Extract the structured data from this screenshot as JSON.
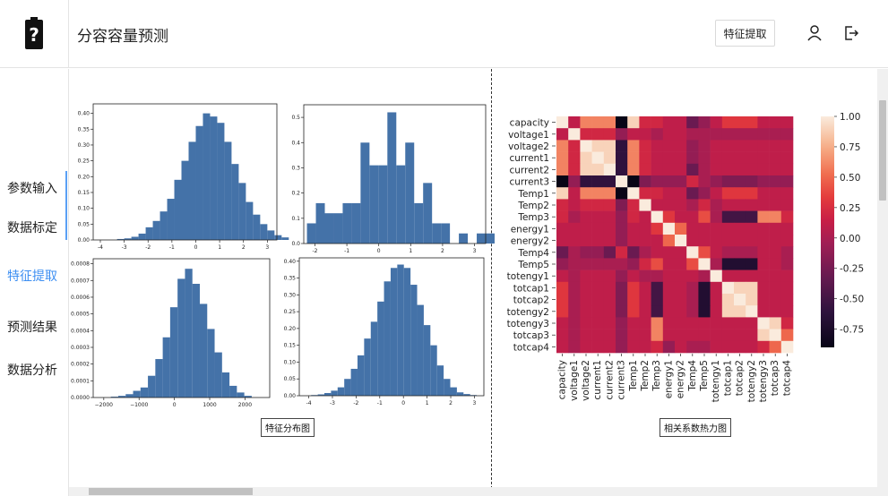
{
  "header": {
    "title": "分容容量预测",
    "extract_button": "特征提取",
    "user_icon": "user-icon",
    "logout_icon": "logout-icon",
    "logo_icon": "battery-question-icon"
  },
  "sidebar": {
    "items": [
      {
        "label": "参数输入"
      },
      {
        "label": "数据标定"
      },
      {
        "label": "特征提取"
      },
      {
        "label": "预测结果"
      },
      {
        "label": "数据分析"
      }
    ],
    "active": "特征提取",
    "active_color": "#3d8ff2"
  },
  "captions": {
    "distribution": "特征分布图",
    "heatmap": "相关系数热力图"
  },
  "chart_data": [
    {
      "type": "bar",
      "xticks": [
        "-4",
        "-3",
        "-2",
        "-1",
        "0",
        "1",
        "2",
        "3"
      ],
      "yticks": [
        "0.00",
        "0.05",
        "0.10",
        "0.15",
        "0.20",
        "0.25",
        "0.30",
        "0.35",
        "0.40"
      ],
      "xlim": [
        -4.3,
        3.4
      ],
      "ylim": [
        0,
        0.43
      ],
      "bin_start": -3.3,
      "bin_width": 0.3,
      "values": [
        0.003,
        0.005,
        0.01,
        0.02,
        0.04,
        0.06,
        0.09,
        0.13,
        0.19,
        0.25,
        0.31,
        0.36,
        0.4,
        0.39,
        0.37,
        0.31,
        0.24,
        0.18,
        0.12,
        0.08,
        0.05,
        0.03,
        0.015,
        0.008
      ],
      "color": "#4472a8"
    },
    {
      "type": "bar",
      "xticks": [
        "-2",
        "-1",
        "0",
        "1",
        "2",
        "3"
      ],
      "yticks": [
        "0.0",
        "0.1",
        "0.2",
        "0.3",
        "0.4",
        "0.5"
      ],
      "xlim": [
        -2.35,
        3.35
      ],
      "ylim": [
        0,
        0.55
      ],
      "bin_start": -2.25,
      "bin_width": 0.28,
      "values": [
        0.08,
        0.16,
        0.12,
        0.12,
        0.16,
        0.16,
        0.4,
        0.31,
        0.31,
        0.52,
        0.31,
        0.4,
        0.16,
        0.24,
        0.08,
        0.08,
        0.0,
        0.04,
        0.0,
        0.04,
        0.04
      ],
      "color": "#4472a8"
    },
    {
      "type": "bar",
      "xticks": [
        "−2000",
        "−1000",
        "0",
        "1000",
        "2000"
      ],
      "yticks": [
        "0.0000",
        "0.0001",
        "0.0002",
        "0.0003",
        "0.0004",
        "0.0005",
        "0.0006",
        "0.0007",
        "0.0008"
      ],
      "xlim": [
        -2300,
        2700
      ],
      "ylim": [
        0,
        0.00083
      ],
      "bin_start": -1800,
      "bin_width": 210,
      "values": [
        5e-06,
        1e-05,
        2e-05,
        4e-05,
        6e-05,
        0.00013,
        0.00023,
        0.00036,
        0.00054,
        0.00071,
        0.00077,
        0.00068,
        0.00056,
        0.00041,
        0.00027,
        0.00015,
        7e-05,
        3e-05,
        1e-05
      ],
      "color": "#4472a8"
    },
    {
      "type": "bar",
      "xticks": [
        "-4",
        "-3",
        "-2",
        "-1",
        "0",
        "1",
        "2",
        "3"
      ],
      "yticks": [
        "0.00",
        "0.05",
        "0.10",
        "0.15",
        "0.20",
        "0.25",
        "0.30",
        "0.35",
        "0.40"
      ],
      "xlim": [
        -4.4,
        3.4
      ],
      "ylim": [
        0,
        0.41
      ],
      "bin_start": -3.9,
      "bin_width": 0.28,
      "values": [
        0.002,
        0.004,
        0.008,
        0.015,
        0.025,
        0.05,
        0.08,
        0.12,
        0.17,
        0.22,
        0.28,
        0.34,
        0.38,
        0.39,
        0.38,
        0.33,
        0.27,
        0.21,
        0.15,
        0.09,
        0.05,
        0.025,
        0.01,
        0.005,
        0.002
      ],
      "color": "#4472a8"
    },
    {
      "type": "heatmap",
      "labels": [
        "capacity",
        "voltage1",
        "voltage2",
        "current1",
        "current2",
        "current3",
        "Temp1",
        "Temp2",
        "Temp3",
        "energy1",
        "energy2",
        "Temp4",
        "Temp5",
        "totengy1",
        "totcap1",
        "totcap2",
        "totengy2",
        "totengy3",
        "totcap3",
        "totcap4"
      ],
      "colorbar_ticks": [
        "1.00",
        "0.75",
        "0.50",
        "0.25",
        "0.00",
        "-0.25",
        "-0.50",
        "-0.75"
      ],
      "vmin": -0.9,
      "vmax": 1.0,
      "matrix": [
        [
          1.0,
          0.1,
          0.6,
          0.6,
          0.6,
          -0.9,
          0.9,
          0.2,
          0.2,
          0.1,
          0.1,
          -0.3,
          -0.1,
          0.1,
          0.3,
          0.3,
          0.3,
          0.1,
          0.1,
          0.1
        ],
        [
          0.1,
          1.0,
          0.2,
          0.2,
          0.2,
          -0.1,
          0.1,
          0.1,
          0.0,
          0.1,
          0.1,
          0.0,
          0.0,
          0.0,
          0.0,
          0.0,
          0.0,
          0.0,
          0.0,
          0.0
        ],
        [
          0.6,
          0.2,
          1.0,
          0.9,
          0.9,
          -0.6,
          0.6,
          0.2,
          0.1,
          0.1,
          0.1,
          -0.1,
          0.0,
          0.1,
          0.1,
          0.1,
          0.1,
          0.1,
          0.1,
          0.1
        ],
        [
          0.6,
          0.2,
          0.9,
          1.0,
          0.9,
          -0.6,
          0.6,
          0.2,
          0.1,
          0.1,
          0.1,
          -0.1,
          0.0,
          0.1,
          0.1,
          0.1,
          0.1,
          0.1,
          0.1,
          0.1
        ],
        [
          0.6,
          0.2,
          0.9,
          0.9,
          1.0,
          -0.6,
          0.6,
          0.2,
          0.1,
          0.1,
          0.1,
          -0.3,
          0.0,
          0.1,
          0.1,
          0.1,
          0.1,
          0.1,
          0.1,
          0.1
        ],
        [
          -0.9,
          -0.1,
          -0.6,
          -0.6,
          -0.6,
          1.0,
          -0.9,
          -0.2,
          -0.1,
          -0.1,
          -0.1,
          0.2,
          0.0,
          -0.1,
          -0.2,
          -0.2,
          -0.2,
          -0.1,
          -0.1,
          -0.1
        ],
        [
          0.9,
          0.1,
          0.6,
          0.6,
          0.6,
          -0.9,
          1.0,
          0.2,
          0.2,
          0.1,
          0.1,
          -0.3,
          -0.1,
          0.1,
          0.3,
          0.3,
          0.3,
          0.1,
          0.1,
          0.1
        ],
        [
          0.2,
          0.1,
          0.2,
          0.2,
          0.2,
          -0.2,
          0.2,
          1.0,
          0.1,
          0.1,
          0.1,
          0.0,
          0.2,
          0.0,
          0.1,
          0.1,
          0.1,
          0.1,
          0.1,
          0.1
        ],
        [
          0.2,
          0.0,
          0.1,
          0.1,
          0.1,
          -0.1,
          0.2,
          0.1,
          1.0,
          0.3,
          0.1,
          0.1,
          0.4,
          0.0,
          -0.5,
          -0.5,
          -0.5,
          0.6,
          0.6,
          0.2
        ],
        [
          0.1,
          0.1,
          0.1,
          0.1,
          0.1,
          -0.1,
          0.1,
          0.1,
          0.3,
          1.0,
          0.5,
          0.1,
          0.1,
          0.1,
          0.1,
          0.1,
          0.1,
          0.1,
          0.1,
          0.1
        ],
        [
          0.1,
          0.1,
          0.1,
          0.1,
          0.1,
          -0.1,
          0.1,
          0.1,
          0.1,
          0.5,
          1.0,
          0.1,
          0.1,
          0.1,
          0.1,
          0.1,
          0.1,
          0.1,
          0.1,
          0.1
        ],
        [
          -0.3,
          0.0,
          -0.1,
          -0.1,
          -0.3,
          0.2,
          -0.3,
          0.0,
          0.1,
          0.1,
          0.1,
          1.0,
          0.4,
          0.1,
          0.0,
          0.0,
          0.0,
          0.1,
          0.1,
          0.0
        ],
        [
          -0.1,
          0.0,
          0.0,
          0.0,
          0.0,
          0.0,
          -0.1,
          0.2,
          0.4,
          0.1,
          0.1,
          0.4,
          1.0,
          0.0,
          -0.7,
          -0.7,
          -0.7,
          0.1,
          0.1,
          0.0
        ],
        [
          0.1,
          0.0,
          0.1,
          0.1,
          0.1,
          -0.1,
          0.1,
          0.0,
          0.0,
          0.1,
          0.1,
          0.1,
          0.0,
          1.0,
          0.1,
          0.1,
          0.1,
          0.1,
          0.1,
          0.1
        ],
        [
          0.3,
          0.0,
          0.1,
          0.1,
          0.1,
          -0.2,
          0.3,
          0.1,
          -0.5,
          0.1,
          0.1,
          0.0,
          -0.7,
          0.1,
          1.0,
          0.9,
          0.9,
          0.1,
          0.1,
          0.1
        ],
        [
          0.3,
          0.0,
          0.1,
          0.1,
          0.1,
          -0.2,
          0.3,
          0.1,
          -0.5,
          0.1,
          0.1,
          0.0,
          -0.7,
          0.1,
          0.9,
          1.0,
          0.9,
          0.1,
          0.1,
          0.1
        ],
        [
          0.3,
          0.0,
          0.1,
          0.1,
          0.1,
          -0.2,
          0.3,
          0.1,
          -0.5,
          0.1,
          0.1,
          0.0,
          -0.7,
          0.1,
          0.9,
          0.9,
          1.0,
          0.1,
          0.1,
          0.1
        ],
        [
          0.1,
          0.0,
          0.1,
          0.1,
          0.1,
          -0.1,
          0.1,
          0.1,
          0.6,
          0.1,
          0.1,
          0.1,
          0.1,
          0.1,
          0.1,
          0.1,
          0.1,
          1.0,
          0.9,
          0.2
        ],
        [
          0.1,
          0.0,
          0.1,
          0.1,
          0.1,
          -0.1,
          0.1,
          0.1,
          0.6,
          0.1,
          0.1,
          0.1,
          0.1,
          0.1,
          0.1,
          0.1,
          0.1,
          0.9,
          1.0,
          0.5
        ],
        [
          0.1,
          0.0,
          0.1,
          0.1,
          0.1,
          -0.1,
          0.1,
          0.1,
          0.2,
          -0.1,
          0.1,
          0.0,
          0.0,
          0.1,
          0.1,
          0.1,
          0.1,
          0.2,
          0.5,
          1.0
        ]
      ]
    }
  ]
}
